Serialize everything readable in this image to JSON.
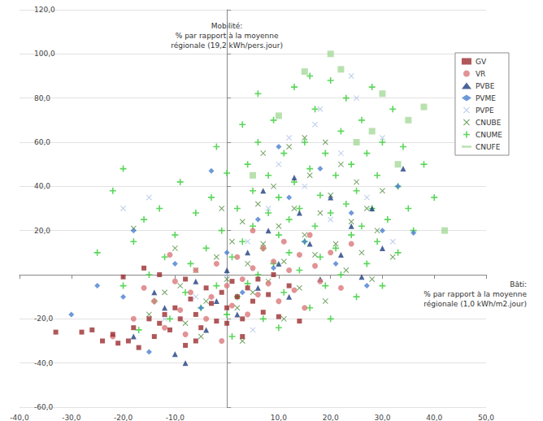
{
  "chart_data": {
    "type": "scatter",
    "xlabel": "Bâti:\n% par rapport à la moyenne\nrégionale (1,0 kWh/m2.jour)",
    "ylabel": "Mobilité:\n% par rapport à la moyenne\nrégionale (19,2 kWh/pers.jour)",
    "xlim": [
      -40,
      50
    ],
    "xticks": [
      {
        "value": -40,
        "label": "-40,0"
      },
      {
        "value": -30,
        "label": "-30,0"
      },
      {
        "value": -20,
        "label": "-20,0"
      },
      {
        "value": -10,
        "label": "-10,0"
      },
      {
        "value": 10,
        "label": "10,0"
      },
      {
        "value": 20,
        "label": "20,0"
      },
      {
        "value": 30,
        "label": "30,0"
      },
      {
        "value": 40,
        "label": "40,0"
      },
      {
        "value": 50,
        "label": "50,0"
      }
    ],
    "ylim": [
      -60,
      120
    ],
    "yticks": [
      {
        "value": -60,
        "label": "-60,0"
      },
      {
        "value": -40,
        "label": "-40,0"
      },
      {
        "value": -20,
        "label": "-20,0"
      },
      {
        "value": 20,
        "label": "20,0"
      },
      {
        "value": 40,
        "label": "40,0"
      },
      {
        "value": 60,
        "label": "60,0"
      },
      {
        "value": 80,
        "label": "80,0"
      },
      {
        "value": 100,
        "label": "100,0"
      },
      {
        "value": 120,
        "label": "120,0"
      }
    ],
    "grid": true,
    "legend": "upper right",
    "series": [
      {
        "name": "GV",
        "color": "#9b2d30",
        "marker": "square",
        "values": [
          [
            -33,
            -26
          ],
          [
            -28,
            -26
          ],
          [
            -26,
            -25
          ],
          [
            -24,
            -30
          ],
          [
            -22,
            -27
          ],
          [
            -21,
            -31
          ],
          [
            -19,
            -30
          ],
          [
            -18,
            -24
          ],
          [
            -17,
            -33
          ],
          [
            -15,
            -20
          ],
          [
            -14,
            -28
          ],
          [
            -13,
            -22
          ],
          [
            -12,
            -18
          ],
          [
            -11,
            -25
          ],
          [
            -10,
            -15
          ],
          [
            -9,
            -20
          ],
          [
            -8,
            -32
          ],
          [
            -7,
            -11
          ],
          [
            -6,
            -18
          ],
          [
            -5,
            -24
          ],
          [
            -4,
            -6
          ],
          [
            -3,
            -13
          ],
          [
            -2,
            -21
          ],
          [
            -1,
            -8
          ],
          [
            0,
            -15
          ],
          [
            1,
            -3
          ],
          [
            2,
            -10
          ],
          [
            3,
            -20
          ],
          [
            4,
            -6
          ],
          [
            5,
            -12
          ],
          [
            6,
            -2
          ],
          [
            7,
            -17
          ],
          [
            8,
            -9
          ],
          [
            9,
            0
          ],
          [
            10,
            -19
          ],
          [
            12,
            -5
          ],
          [
            14,
            -21
          ],
          [
            -20,
            -1
          ],
          [
            -16,
            3
          ],
          [
            -13,
            0
          ],
          [
            -8,
            -2
          ],
          [
            0,
            -22
          ],
          [
            -6,
            -30
          ],
          [
            3,
            -28
          ]
        ]
      },
      {
        "name": "VR",
        "color": "#d9787a",
        "marker": "circle",
        "values": [
          [
            -22,
            -28
          ],
          [
            -18,
            -20
          ],
          [
            -16,
            -6
          ],
          [
            -14,
            -12
          ],
          [
            -12,
            -24
          ],
          [
            -10,
            -3
          ],
          [
            -9,
            -16
          ],
          [
            -7,
            -8
          ],
          [
            -6,
            2
          ],
          [
            -4,
            -20
          ],
          [
            -3,
            -10
          ],
          [
            -2,
            5
          ],
          [
            0,
            -5
          ],
          [
            1,
            -14
          ],
          [
            2,
            8
          ],
          [
            3,
            -2
          ],
          [
            4,
            -18
          ],
          [
            5,
            3
          ],
          [
            6,
            -9
          ],
          [
            7,
            12
          ],
          [
            8,
            -4
          ],
          [
            9,
            6
          ],
          [
            10,
            -12
          ],
          [
            11,
            15
          ],
          [
            12,
            2
          ],
          [
            13,
            -7
          ],
          [
            14,
            9
          ],
          [
            15,
            -15
          ],
          [
            16,
            18
          ],
          [
            17,
            4
          ],
          [
            18,
            -3
          ],
          [
            20,
            10
          ],
          [
            22,
            -6
          ],
          [
            24,
            14
          ],
          [
            -8,
            -27
          ],
          [
            -1,
            -30
          ],
          [
            5,
            20
          ],
          [
            -11,
            9
          ]
        ]
      },
      {
        "name": "PVBE",
        "color": "#1f3f7f",
        "marker": "triangle",
        "values": [
          [
            -18,
            -28
          ],
          [
            -12,
            -15
          ],
          [
            -10,
            -36
          ],
          [
            -8,
            -40
          ],
          [
            -6,
            -3
          ],
          [
            -4,
            -25
          ],
          [
            -2,
            -12
          ],
          [
            0,
            2
          ],
          [
            2,
            -18
          ],
          [
            4,
            10
          ],
          [
            6,
            -6
          ],
          [
            8,
            20
          ],
          [
            10,
            5
          ],
          [
            12,
            -10
          ],
          [
            14,
            28
          ],
          [
            16,
            14
          ],
          [
            18,
            -2
          ],
          [
            20,
            35
          ],
          [
            22,
            9
          ],
          [
            24,
            22
          ],
          [
            26,
            -1
          ],
          [
            28,
            30
          ],
          [
            30,
            12
          ],
          [
            34,
            48
          ],
          [
            -14,
            -8
          ],
          [
            7,
            38
          ],
          [
            13,
            44
          ]
        ]
      },
      {
        "name": "PVME",
        "color": "#4a7fd0",
        "marker": "diamond",
        "values": [
          [
            -30,
            -18
          ],
          [
            -25,
            -5
          ],
          [
            -20,
            -10
          ],
          [
            -18,
            20
          ],
          [
            -15,
            -35
          ],
          [
            -10,
            5
          ],
          [
            -5,
            -15
          ],
          [
            0,
            10
          ],
          [
            3,
            -8
          ],
          [
            6,
            25
          ],
          [
            9,
            3
          ],
          [
            12,
            35
          ],
          [
            15,
            15
          ],
          [
            18,
            48
          ],
          [
            21,
            5
          ],
          [
            24,
            28
          ],
          [
            27,
            -5
          ],
          [
            30,
            20
          ],
          [
            33,
            40
          ],
          [
            36,
            19
          ],
          [
            -3,
            47
          ],
          [
            10,
            58
          ]
        ]
      },
      {
        "name": "PVPE",
        "color": "#a9bfe6",
        "marker": "x",
        "values": [
          [
            -12,
            -20
          ],
          [
            -6,
            -10
          ],
          [
            0,
            0
          ],
          [
            4,
            15
          ],
          [
            8,
            30
          ],
          [
            10,
            50
          ],
          [
            12,
            62
          ],
          [
            15,
            40
          ],
          [
            18,
            75
          ],
          [
            20,
            25
          ],
          [
            22,
            55
          ],
          [
            25,
            80
          ],
          [
            27,
            35
          ],
          [
            30,
            62
          ],
          [
            32,
            15
          ],
          [
            -20,
            30
          ],
          [
            -15,
            35
          ],
          [
            5,
            -25
          ],
          [
            17,
            68
          ],
          [
            24,
            90
          ]
        ]
      },
      {
        "name": "CNUBE",
        "color": "#4e8a3a",
        "marker": "x",
        "values": [
          [
            -18,
            21
          ],
          [
            -15,
            -18
          ],
          [
            -12,
            -8
          ],
          [
            -10,
            12
          ],
          [
            -8,
            -22
          ],
          [
            -6,
            2
          ],
          [
            -4,
            -12
          ],
          [
            -2,
            8
          ],
          [
            0,
            -2
          ],
          [
            1,
            15
          ],
          [
            2,
            -15
          ],
          [
            3,
            24
          ],
          [
            4,
            5
          ],
          [
            5,
            -8
          ],
          [
            6,
            32
          ],
          [
            7,
            14
          ],
          [
            8,
            -3
          ],
          [
            9,
            40
          ],
          [
            10,
            22
          ],
          [
            11,
            6
          ],
          [
            12,
            58
          ],
          [
            13,
            30
          ],
          [
            14,
            -6
          ],
          [
            15,
            18
          ],
          [
            16,
            45
          ],
          [
            17,
            9
          ],
          [
            18,
            28
          ],
          [
            19,
            -12
          ],
          [
            20,
            36
          ],
          [
            21,
            14
          ],
          [
            22,
            50
          ],
          [
            23,
            2
          ],
          [
            24,
            24
          ],
          [
            25,
            42
          ],
          [
            26,
            10
          ],
          [
            27,
            30
          ],
          [
            28,
            -2
          ],
          [
            29,
            20
          ],
          [
            30,
            38
          ],
          [
            32,
            8
          ],
          [
            -5,
            -28
          ],
          [
            -1,
            30
          ],
          [
            7,
            55
          ],
          [
            15,
            62
          ],
          [
            -9,
            -5
          ],
          [
            3,
            -30
          ],
          [
            11,
            -20
          ],
          [
            19,
            60
          ]
        ]
      },
      {
        "name": "CNUME",
        "color": "#33cc33",
        "marker": "plus",
        "values": [
          [
            -25,
            10
          ],
          [
            -22,
            38
          ],
          [
            -20,
            -5
          ],
          [
            -18,
            15
          ],
          [
            -16,
            25
          ],
          [
            -15,
            0
          ],
          [
            -14,
            -12
          ],
          [
            -13,
            30
          ],
          [
            -12,
            8
          ],
          [
            -11,
            -20
          ],
          [
            -10,
            18
          ],
          [
            -9,
            42
          ],
          [
            -8,
            -8
          ],
          [
            -7,
            5
          ],
          [
            -6,
            28
          ],
          [
            -5,
            -15
          ],
          [
            -4,
            12
          ],
          [
            -3,
            35
          ],
          [
            -2,
            -5
          ],
          [
            -1,
            20
          ],
          [
            0,
            46
          ],
          [
            0,
            -18
          ],
          [
            1,
            8
          ],
          [
            2,
            30
          ],
          [
            2,
            -10
          ],
          [
            3,
            15
          ],
          [
            4,
            50
          ],
          [
            4,
            -4
          ],
          [
            5,
            22
          ],
          [
            5,
            38
          ],
          [
            6,
            0
          ],
          [
            6,
            60
          ],
          [
            7,
            12
          ],
          [
            7,
            -20
          ],
          [
            8,
            28
          ],
          [
            8,
            45
          ],
          [
            9,
            5
          ],
          [
            9,
            70
          ],
          [
            10,
            18
          ],
          [
            10,
            35
          ],
          [
            11,
            -8
          ],
          [
            11,
            55
          ],
          [
            12,
            25
          ],
          [
            12,
            10
          ],
          [
            13,
            42
          ],
          [
            13,
            85
          ],
          [
            14,
            2
          ],
          [
            14,
            30
          ],
          [
            15,
            60
          ],
          [
            15,
            15
          ],
          [
            16,
            -15
          ],
          [
            16,
            48
          ],
          [
            17,
            22
          ],
          [
            17,
            75
          ],
          [
            18,
            8
          ],
          [
            18,
            36
          ],
          [
            19,
            55
          ],
          [
            19,
            -5
          ],
          [
            20,
            28
          ],
          [
            20,
            88
          ],
          [
            21,
            12
          ],
          [
            21,
            45
          ],
          [
            22,
            65
          ],
          [
            22,
            0
          ],
          [
            23,
            32
          ],
          [
            23,
            80
          ],
          [
            24,
            18
          ],
          [
            24,
            50
          ],
          [
            25,
            -10
          ],
          [
            25,
            38
          ],
          [
            26,
            70
          ],
          [
            26,
            22
          ],
          [
            27,
            5
          ],
          [
            27,
            55
          ],
          [
            28,
            30
          ],
          [
            28,
            85
          ],
          [
            29,
            15
          ],
          [
            29,
            45
          ],
          [
            30,
            -5
          ],
          [
            30,
            60
          ],
          [
            31,
            25
          ],
          [
            32,
            75
          ],
          [
            33,
            40
          ],
          [
            33,
            10
          ],
          [
            34,
            58
          ],
          [
            35,
            30
          ],
          [
            36,
            20
          ],
          [
            38,
            50
          ],
          [
            40,
            35
          ],
          [
            -20,
            48
          ],
          [
            -17,
            -25
          ],
          [
            1,
            -28
          ],
          [
            10,
            -24
          ],
          [
            20,
            -20
          ],
          [
            6,
            82
          ],
          [
            16,
            90
          ],
          [
            -2,
            58
          ],
          [
            3,
            68
          ]
        ]
      },
      {
        "name": "CNUFE",
        "color": "#a6d99a",
        "marker": "dash",
        "values": [
          [
            10,
            72
          ],
          [
            15,
            92
          ],
          [
            20,
            100
          ],
          [
            25,
            60
          ],
          [
            30,
            82
          ],
          [
            35,
            70
          ],
          [
            38,
            76
          ],
          [
            42,
            20
          ],
          [
            22,
            93
          ],
          [
            28,
            65
          ],
          [
            33,
            50
          ],
          [
            5,
            45
          ]
        ]
      }
    ]
  }
}
